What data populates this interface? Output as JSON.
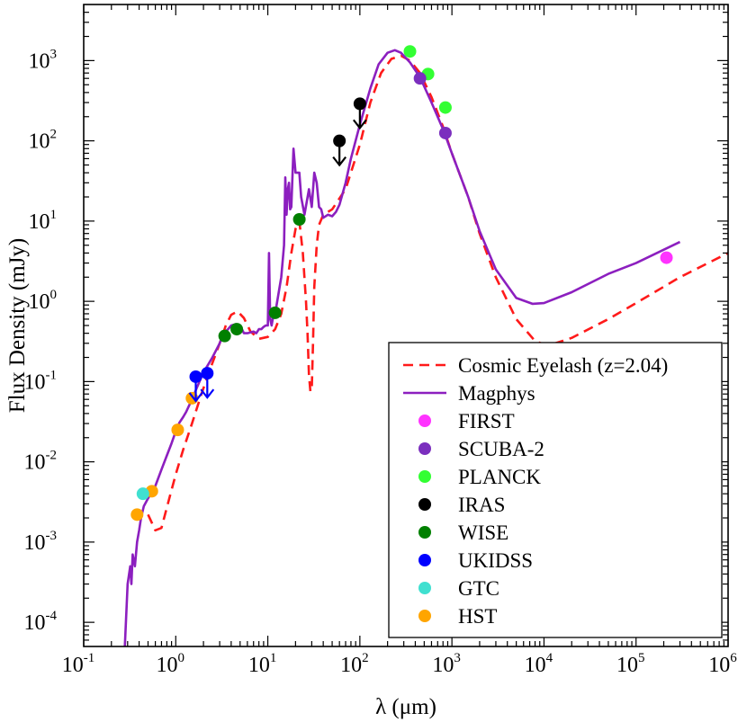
{
  "chart_data": {
    "type": "line",
    "title": "",
    "xlabel": "λ (μm)",
    "ylabel": "Flux Density (mJy)",
    "x_scale": "log",
    "y_scale": "log",
    "xlim": [
      0.1,
      1000000
    ],
    "ylim": [
      5e-05,
      5000
    ],
    "x_ticks": [
      {
        "base": "10",
        "exp": "-1"
      },
      {
        "base": "10",
        "exp": "0"
      },
      {
        "base": "10",
        "exp": "1"
      },
      {
        "base": "10",
        "exp": "2"
      },
      {
        "base": "10",
        "exp": "3"
      },
      {
        "base": "10",
        "exp": "4"
      },
      {
        "base": "10",
        "exp": "5"
      },
      {
        "base": "10",
        "exp": "6"
      }
    ],
    "y_ticks": [
      {
        "base": "10",
        "exp": "-4"
      },
      {
        "base": "10",
        "exp": "-3"
      },
      {
        "base": "10",
        "exp": "-2"
      },
      {
        "base": "10",
        "exp": "-1"
      },
      {
        "base": "10",
        "exp": "0"
      },
      {
        "base": "10",
        "exp": "1"
      },
      {
        "base": "10",
        "exp": "2"
      },
      {
        "base": "10",
        "exp": "3"
      }
    ],
    "grid": false,
    "legend_position": "bottom-right",
    "lines": [
      {
        "name": "Cosmic Eyelash (z=2.04)",
        "color": "#ff1a1a",
        "dash": "dashed",
        "points": [
          [
            0.5,
            0.0022
          ],
          [
            0.6,
            0.0014
          ],
          [
            0.7,
            0.0015
          ],
          [
            0.85,
            0.0035
          ],
          [
            1.0,
            0.007
          ],
          [
            1.2,
            0.014
          ],
          [
            1.5,
            0.03
          ],
          [
            1.9,
            0.07
          ],
          [
            2.4,
            0.15
          ],
          [
            3.0,
            0.3
          ],
          [
            3.5,
            0.5
          ],
          [
            4.0,
            0.68
          ],
          [
            4.7,
            0.75
          ],
          [
            5.5,
            0.62
          ],
          [
            6.5,
            0.42
          ],
          [
            8.0,
            0.34
          ],
          [
            10.0,
            0.36
          ],
          [
            12.0,
            0.45
          ],
          [
            14.0,
            0.7
          ],
          [
            16.0,
            1.5
          ],
          [
            18.0,
            4.0
          ],
          [
            20.0,
            8.0
          ],
          [
            22.0,
            10.0
          ],
          [
            24.0,
            4.0
          ],
          [
            26.0,
            1.0
          ],
          [
            27.0,
            0.4
          ],
          [
            28.0,
            0.12
          ],
          [
            29.0,
            0.075
          ],
          [
            30.0,
            0.08
          ],
          [
            31.0,
            0.3
          ],
          [
            32.0,
            1.5
          ],
          [
            34.0,
            5.0
          ],
          [
            36.0,
            9.0
          ],
          [
            40.0,
            12.0
          ],
          [
            50.0,
            14.0
          ],
          [
            70.0,
            25.0
          ],
          [
            100.0,
            90.0
          ],
          [
            130.0,
            300.0
          ],
          [
            170.0,
            700.0
          ],
          [
            220.0,
            1050.0
          ],
          [
            280.0,
            1150.0
          ],
          [
            350.0,
            1000.0
          ],
          [
            450.0,
            700.0
          ],
          [
            600.0,
            350.0
          ],
          [
            800.0,
            150.0
          ],
          [
            1000.0,
            70.0
          ],
          [
            1500.0,
            20.0
          ],
          [
            2000.0,
            7.0
          ],
          [
            3000.0,
            2.0
          ],
          [
            5000.0,
            0.6
          ],
          [
            8000.0,
            0.32
          ],
          [
            11000.0,
            0.28
          ],
          [
            20000.0,
            0.35
          ],
          [
            50000.0,
            0.6
          ],
          [
            100000.0,
            0.95
          ],
          [
            300000.0,
            2.0
          ],
          [
            1000000.0,
            4.0
          ]
        ]
      },
      {
        "name": "Magphys",
        "color": "#8c1fbf",
        "dash": "solid",
        "points": [
          [
            0.28,
            5e-05
          ],
          [
            0.3,
            0.0003
          ],
          [
            0.32,
            0.0005
          ],
          [
            0.33,
            0.0003
          ],
          [
            0.34,
            0.0007
          ],
          [
            0.36,
            0.0005
          ],
          [
            0.38,
            0.001
          ],
          [
            0.4,
            0.0014
          ],
          [
            0.42,
            0.002
          ],
          [
            0.45,
            0.0028
          ],
          [
            0.5,
            0.0035
          ],
          [
            0.55,
            0.0042
          ],
          [
            0.6,
            0.005
          ],
          [
            0.7,
            0.008
          ],
          [
            0.8,
            0.012
          ],
          [
            0.9,
            0.017
          ],
          [
            1.0,
            0.024
          ],
          [
            1.1,
            0.031
          ],
          [
            1.2,
            0.036
          ],
          [
            1.3,
            0.042
          ],
          [
            1.5,
            0.06
          ],
          [
            1.7,
            0.085
          ],
          [
            2.0,
            0.13
          ],
          [
            2.3,
            0.17
          ],
          [
            2.5,
            0.2
          ],
          [
            3.0,
            0.3
          ],
          [
            3.3,
            0.4
          ],
          [
            3.7,
            0.45
          ],
          [
            4.0,
            0.5
          ],
          [
            4.5,
            0.52
          ],
          [
            5.0,
            0.5
          ],
          [
            5.5,
            0.4
          ],
          [
            6.0,
            0.4
          ],
          [
            7.0,
            0.42
          ],
          [
            7.5,
            0.4
          ],
          [
            8.0,
            0.45
          ],
          [
            8.5,
            0.45
          ],
          [
            9.0,
            0.48
          ],
          [
            9.5,
            0.5
          ],
          [
            10.0,
            0.5
          ],
          [
            10.3,
            4.0
          ],
          [
            10.6,
            0.6
          ],
          [
            11.0,
            0.5
          ],
          [
            11.3,
            0.6
          ],
          [
            12.0,
            0.7
          ],
          [
            13.0,
            1.2
          ],
          [
            14.0,
            2.0
          ],
          [
            15.0,
            5.0
          ],
          [
            15.5,
            35.0
          ],
          [
            16.0,
            12.0
          ],
          [
            16.5,
            25.0
          ],
          [
            17.0,
            30.0
          ],
          [
            17.5,
            14.0
          ],
          [
            18.0,
            15.0
          ],
          [
            19.0,
            80.0
          ],
          [
            20.0,
            40.0
          ],
          [
            22.0,
            40.0
          ],
          [
            23.0,
            20.0
          ],
          [
            25.0,
            12.0
          ],
          [
            28.0,
            25.0
          ],
          [
            30.0,
            15.0
          ],
          [
            32.0,
            40.0
          ],
          [
            34.0,
            30.0
          ],
          [
            36.0,
            15.0
          ],
          [
            38.0,
            14.0
          ],
          [
            40.0,
            11.0
          ],
          [
            45.0,
            12.0
          ],
          [
            50.0,
            11.5
          ],
          [
            55.0,
            13.0
          ],
          [
            60.0,
            16.0
          ],
          [
            70.0,
            30.0
          ],
          [
            80.0,
            60.0
          ],
          [
            100.0,
            160.0
          ],
          [
            130.0,
            450.0
          ],
          [
            160.0,
            900.0
          ],
          [
            200.0,
            1250.0
          ],
          [
            240.0,
            1350.0
          ],
          [
            280.0,
            1250.0
          ],
          [
            350.0,
            950.0
          ],
          [
            450.0,
            620.0
          ],
          [
            600.0,
            300.0
          ],
          [
            800.0,
            140.0
          ],
          [
            1000.0,
            70.0
          ],
          [
            1500.0,
            20.0
          ],
          [
            2000.0,
            7.5
          ],
          [
            3000.0,
            2.5
          ],
          [
            5000.0,
            1.1
          ],
          [
            7500.0,
            0.93
          ],
          [
            10000.0,
            0.95
          ],
          [
            20000.0,
            1.3
          ],
          [
            50000.0,
            2.2
          ],
          [
            100000.0,
            3.0
          ],
          [
            300000.0,
            5.5
          ]
        ]
      }
    ],
    "points": [
      {
        "series": "HST",
        "color": "#ffa500",
        "points": [
          [
            0.38,
            0.0022
          ],
          [
            0.55,
            0.0043
          ],
          [
            1.05,
            0.025
          ],
          [
            1.5,
            0.062
          ]
        ]
      },
      {
        "series": "GTC",
        "color": "#40e0d0",
        "points": [
          [
            0.44,
            0.004
          ]
        ]
      },
      {
        "series": "UKIDSS",
        "color": "#0000ff",
        "points": [
          [
            1.65,
            0.115
          ],
          [
            2.2,
            0.127
          ]
        ],
        "upper_limit": true
      },
      {
        "series": "WISE",
        "color": "#008000",
        "points": [
          [
            3.4,
            0.37
          ],
          [
            4.6,
            0.45
          ],
          [
            12.0,
            0.72
          ],
          [
            22.0,
            10.5
          ]
        ]
      },
      {
        "series": "IRAS",
        "color": "#000000",
        "points": [
          [
            60.0,
            100.0
          ],
          [
            100.0,
            290.0
          ]
        ],
        "upper_limit": true
      },
      {
        "series": "PLANCK",
        "color": "#33ff33",
        "points": [
          [
            350.0,
            1300.0
          ],
          [
            550.0,
            680.0
          ],
          [
            850.0,
            260.0
          ]
        ]
      },
      {
        "series": "SCUBA-2",
        "color": "#7b2fbe",
        "points": [
          [
            450.0,
            600.0
          ],
          [
            850.0,
            125.0
          ]
        ]
      },
      {
        "series": "FIRST",
        "color": "#ff33ff",
        "points": [
          [
            214000.0,
            3.5
          ]
        ]
      }
    ],
    "legend": [
      {
        "label": "Cosmic Eyelash (z=2.04)",
        "kind": "line",
        "color": "#ff1a1a",
        "dash": "dashed"
      },
      {
        "label": "Magphys",
        "kind": "line",
        "color": "#8c1fbf",
        "dash": "solid"
      },
      {
        "label": "FIRST",
        "kind": "marker",
        "color": "#ff33ff"
      },
      {
        "label": "SCUBA-2",
        "kind": "marker",
        "color": "#7b2fbe"
      },
      {
        "label": "PLANCK",
        "kind": "marker",
        "color": "#33ff33"
      },
      {
        "label": "IRAS",
        "kind": "marker",
        "color": "#000000"
      },
      {
        "label": "WISE",
        "kind": "marker",
        "color": "#008000"
      },
      {
        "label": "UKIDSS",
        "kind": "marker",
        "color": "#0000ff"
      },
      {
        "label": "GTC",
        "kind": "marker",
        "color": "#40e0d0"
      },
      {
        "label": "HST",
        "kind": "marker",
        "color": "#ffa500"
      }
    ]
  }
}
